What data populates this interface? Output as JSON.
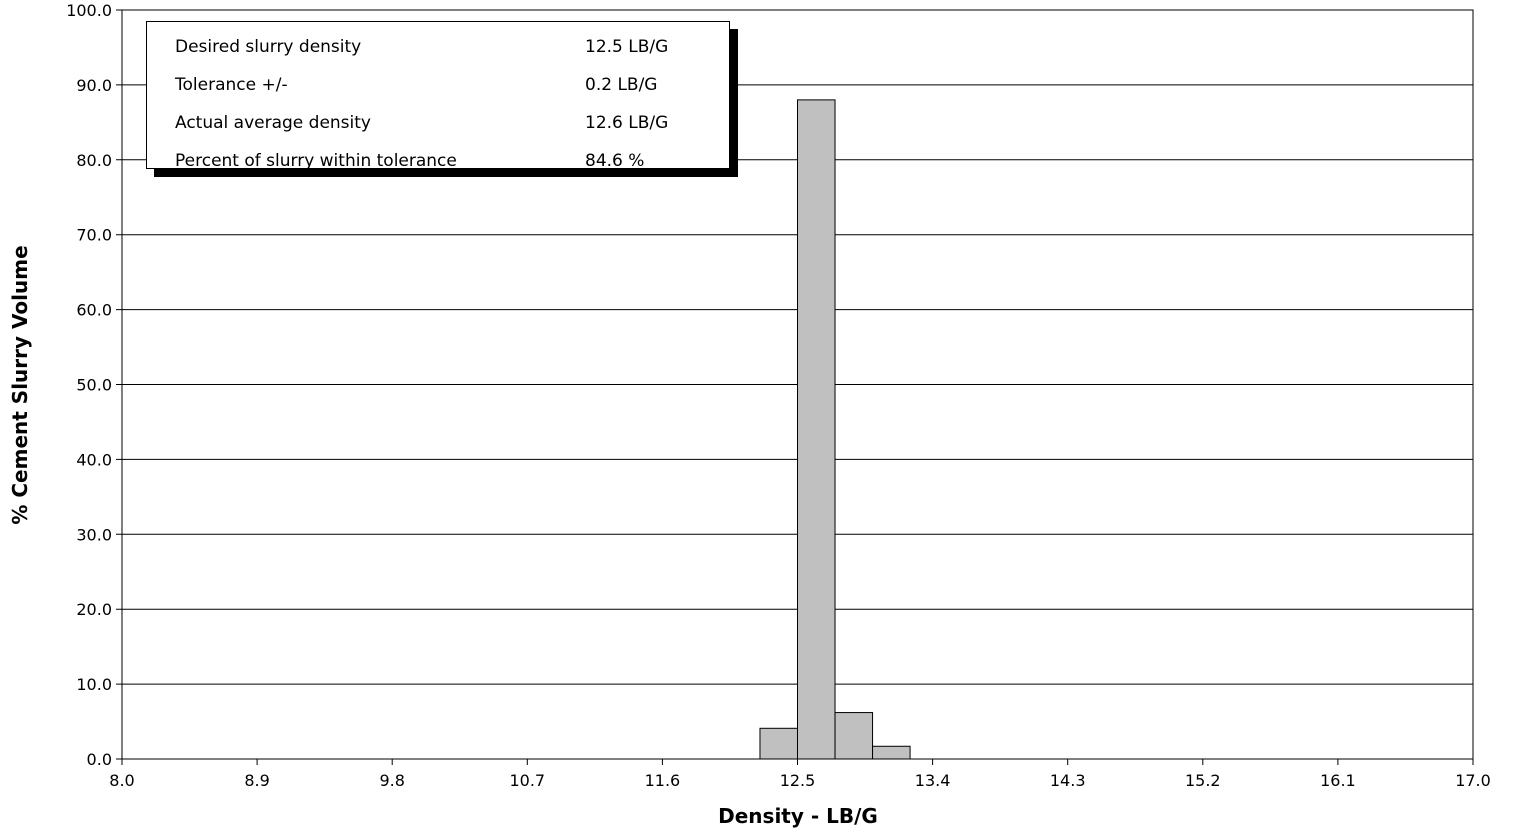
{
  "chart_data": {
    "type": "bar",
    "xlabel": "Density - LB/G",
    "ylabel": "% Cement Slurry Volume",
    "xlim": [
      8.0,
      17.0
    ],
    "ylim": [
      0.0,
      100.0
    ],
    "x_ticks": [
      "8.0",
      "8.9",
      "9.8",
      "10.7",
      "11.6",
      "12.5",
      "13.4",
      "14.3",
      "15.2",
      "16.1",
      "17.0"
    ],
    "y_ticks": [
      "0.0",
      "10.0",
      "20.0",
      "30.0",
      "40.0",
      "50.0",
      "60.0",
      "70.0",
      "80.0",
      "90.0",
      "100.0"
    ],
    "grid": "horizontal",
    "bin_width": 0.25,
    "bars": [
      {
        "start": 12.25,
        "end": 12.5,
        "value": 4.1
      },
      {
        "start": 12.5,
        "end": 12.75,
        "value": 88.0
      },
      {
        "start": 12.75,
        "end": 13.0,
        "value": 6.2
      },
      {
        "start": 13.0,
        "end": 13.25,
        "value": 1.7
      }
    ],
    "bar_color": "#c0c0c0"
  },
  "info_box": {
    "rows": [
      {
        "label": "Desired slurry density",
        "value": "12.5 LB/G"
      },
      {
        "label": "Tolerance +/-",
        "value": "0.2 LB/G"
      },
      {
        "label": "Actual average density",
        "value": "12.6 LB/G"
      },
      {
        "label": "Percent of slurry within tolerance",
        "value": "84.6 %"
      }
    ]
  }
}
